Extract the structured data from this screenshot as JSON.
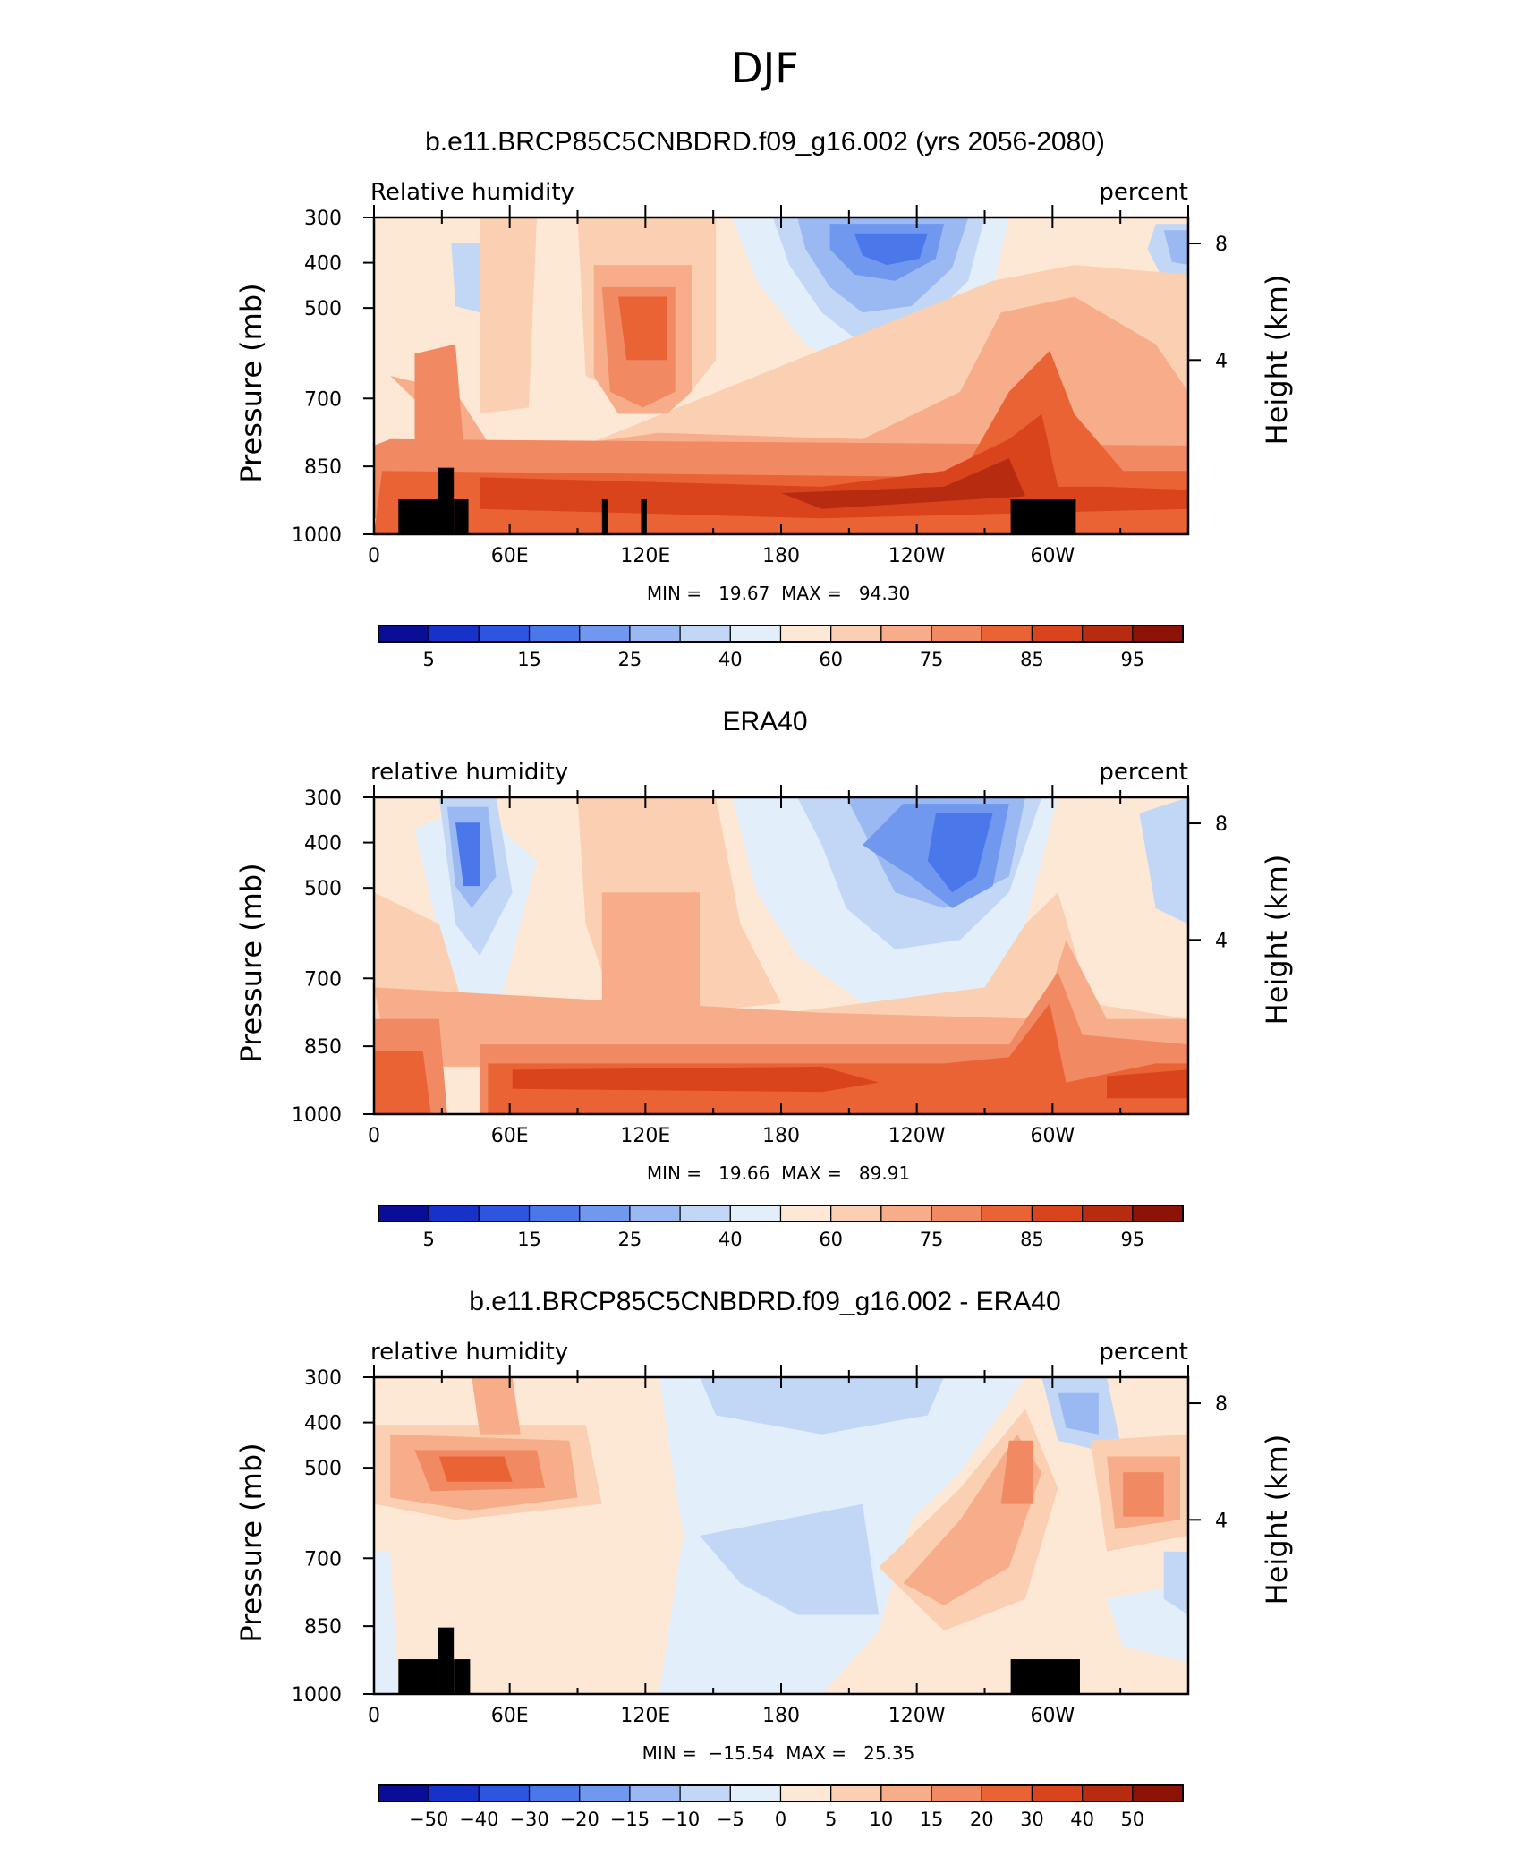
{
  "figure_title": "DJF",
  "chart_data": [
    {
      "type": "heatmap",
      "title": "b.e11.BRCP85C5CNBDRD.f09_g16.002 (yrs 2056-2080)",
      "left_label": "Relative humidity",
      "right_label": "percent",
      "ylabel": "Pressure (mb)",
      "ylabel_right": "Height (km)",
      "y_ticks": [
        "300",
        "400",
        "500",
        "700",
        "850",
        "1000"
      ],
      "y_tick_values": [
        300,
        400,
        500,
        700,
        850,
        1000
      ],
      "y_right_ticks": [
        "8",
        "4"
      ],
      "y_right_tick_values": [
        8,
        4
      ],
      "x_ticks": [
        "0",
        "60E",
        "120E",
        "180",
        "120W",
        "60W"
      ],
      "x_tick_values": [
        0,
        60,
        120,
        180,
        240,
        300
      ],
      "xlim": [
        0,
        360
      ],
      "ylim": [
        300,
        1000
      ],
      "stats_text": "MIN =   19.67  MAX =   94.30",
      "min": 19.67,
      "max": 94.3,
      "colorbar_labels": [
        "5",
        "15",
        "25",
        "40",
        "60",
        "75",
        "85",
        "95"
      ],
      "terrain": true
    },
    {
      "type": "heatmap",
      "title": "ERA40",
      "left_label": "relative humidity",
      "right_label": "percent",
      "ylabel": "Pressure (mb)",
      "ylabel_right": "Height (km)",
      "y_ticks": [
        "300",
        "400",
        "500",
        "700",
        "850",
        "1000"
      ],
      "y_tick_values": [
        300,
        400,
        500,
        700,
        850,
        1000
      ],
      "y_right_ticks": [
        "8",
        "4"
      ],
      "y_right_tick_values": [
        8,
        4
      ],
      "x_ticks": [
        "0",
        "60E",
        "120E",
        "180",
        "120W",
        "60W"
      ],
      "x_tick_values": [
        0,
        60,
        120,
        180,
        240,
        300
      ],
      "xlim": [
        0,
        360
      ],
      "ylim": [
        300,
        1000
      ],
      "stats_text": "MIN =   19.66  MAX =   89.91",
      "min": 19.66,
      "max": 89.91,
      "colorbar_labels": [
        "5",
        "15",
        "25",
        "40",
        "60",
        "75",
        "85",
        "95"
      ],
      "terrain": false
    },
    {
      "type": "heatmap",
      "title": "b.e11.BRCP85C5CNBDRD.f09_g16.002 - ERA40",
      "left_label": "relative humidity",
      "right_label": "percent",
      "ylabel": "Pressure (mb)",
      "ylabel_right": "Height (km)",
      "y_ticks": [
        "300",
        "400",
        "500",
        "700",
        "850",
        "1000"
      ],
      "y_tick_values": [
        300,
        400,
        500,
        700,
        850,
        1000
      ],
      "y_right_ticks": [
        "8",
        "4"
      ],
      "y_right_tick_values": [
        8,
        4
      ],
      "x_ticks": [
        "0",
        "60E",
        "120E",
        "180",
        "120W",
        "60W"
      ],
      "x_tick_values": [
        0,
        60,
        120,
        180,
        240,
        300
      ],
      "xlim": [
        0,
        360
      ],
      "ylim": [
        300,
        1000
      ],
      "stats_text": "MIN =  −15.54  MAX =   25.35",
      "min": -15.54,
      "max": 25.35,
      "colorbar_labels": [
        "−50",
        "−40",
        "−30",
        "−20",
        "−15",
        "−10",
        "−5",
        "0",
        "5",
        "10",
        "15",
        "20",
        "30",
        "40",
        "50"
      ],
      "terrain": true
    }
  ],
  "colorbar_colors": [
    "#0a0e96",
    "#1732c8",
    "#2d55e0",
    "#4a78ea",
    "#6f98ee",
    "#9ab8f2",
    "#c2d7f6",
    "#e2eefa",
    "#fde8d6",
    "#fbcfb2",
    "#f7ad89",
    "#f18962",
    "#ea6335",
    "#d9441c",
    "#b72c10",
    "#8c1306"
  ]
}
